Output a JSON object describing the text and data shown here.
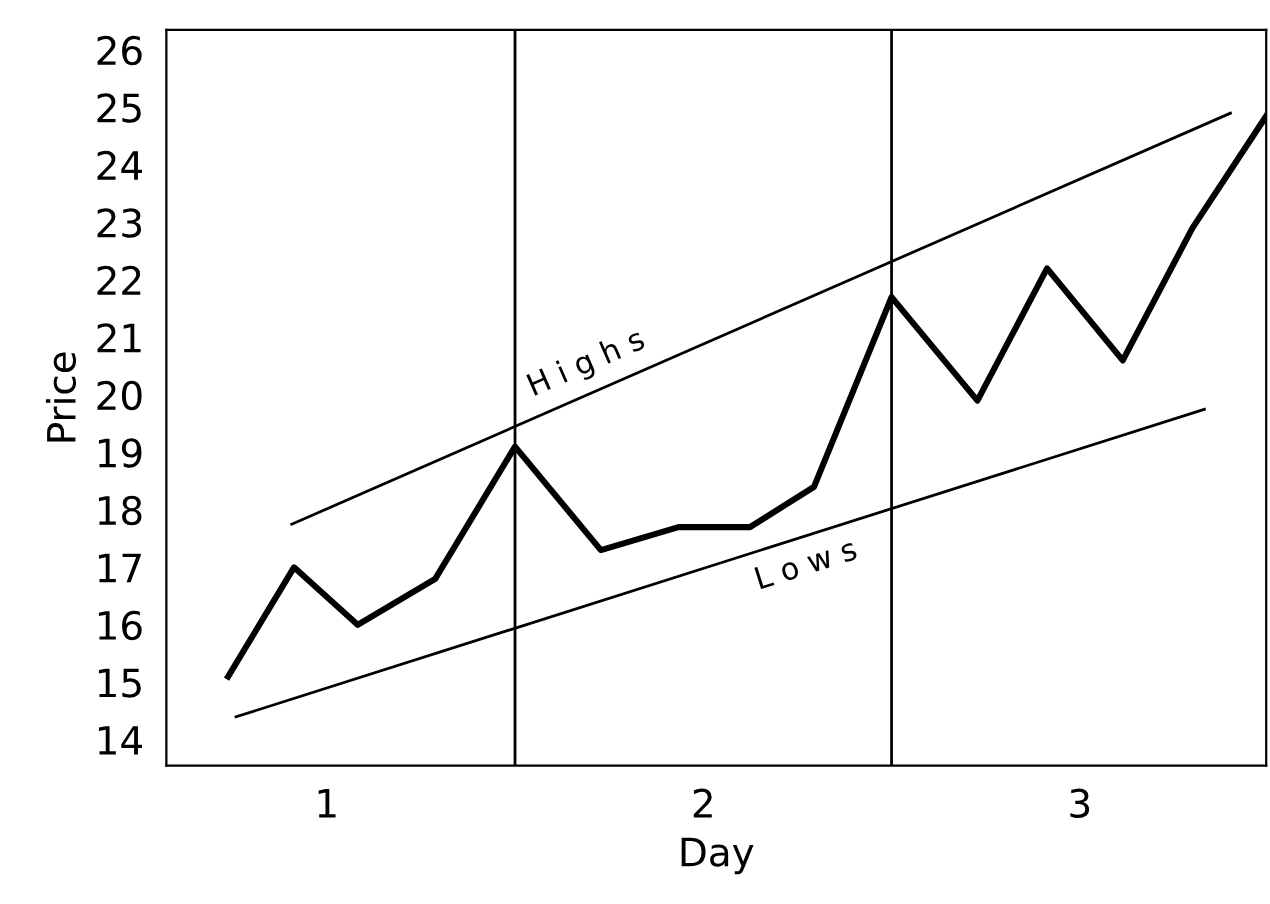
{
  "chart_data": {
    "type": "line",
    "xlabel": "Day",
    "ylabel": "Price",
    "xlim": [
      0.574,
      3.495
    ],
    "xticks": [
      1,
      2,
      3
    ],
    "ylim": [
      13.55,
      26.35
    ],
    "yticks": [
      14,
      15,
      16,
      17,
      18,
      19,
      20,
      21,
      22,
      23,
      24,
      25,
      26
    ],
    "grid": false,
    "marker": "none",
    "line_style": "solid",
    "series": [
      {
        "color": "#000000",
        "x": [
          0.738,
          0.913,
          1.082,
          1.288,
          1.5,
          1.728,
          1.934,
          2.124,
          2.294,
          2.5,
          2.728,
          2.913,
          3.114,
          3.299,
          3.495
        ],
        "values": [
          15.1,
          17.0,
          16.0,
          16.8,
          19.1,
          17.3,
          17.7,
          17.7,
          18.4,
          21.7,
          19.9,
          22.2,
          20.6,
          22.9,
          24.85
        ]
      },
      {
        "color": "#000000",
        "x": [
          0.907,
          3.4
        ],
        "values": [
          17.75,
          24.9
        ]
      },
      {
        "color": "#000000",
        "x": [
          0.759,
          3.331
        ],
        "values": [
          14.4,
          19.75
        ]
      }
    ],
    "ref_lines": [
      {
        "axis": "x",
        "value": 1.5,
        "color": "#000000"
      },
      {
        "axis": "x",
        "value": 2.5,
        "color": "#000000"
      }
    ],
    "annotations": [
      {
        "text": "H i g h s",
        "x": 1.72,
        "y": 20.08
      },
      {
        "text": "L o w s",
        "x": 2.25,
        "y": 17.5
      }
    ]
  }
}
